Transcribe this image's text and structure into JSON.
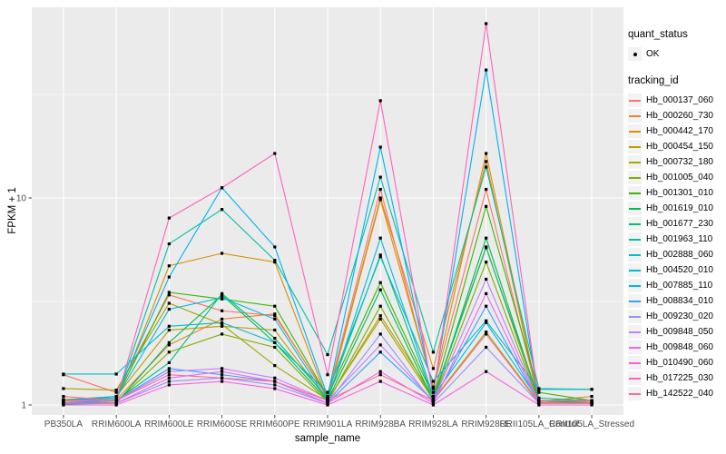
{
  "chart_data": {
    "type": "line",
    "title": "",
    "xlabel": "sample_name",
    "ylabel": "FPKM + 1",
    "y_scale": "log10",
    "y_ticks": [
      1,
      10
    ],
    "ylim": [
      0.9,
      83
    ],
    "grid": {
      "major": true,
      "minor_y": [
        3.162,
        31.62
      ]
    },
    "legend_position": "right",
    "categories": [
      "PB350LA",
      "RRIM600LA",
      "RRIM600LE",
      "RRIM600SE",
      "RRIM600PE",
      "RRIM901LA",
      "RRIM928BA",
      "RRIM928LA",
      "RRIM928LE",
      "RRII105LA_Control",
      "RRII105LA_Stressed"
    ],
    "series": [
      {
        "name": "Hb_000137_060",
        "color": "#F8766D",
        "values": [
          1.4,
          1.15,
          3.4,
          2.85,
          2.7,
          1.1,
          11.0,
          1.2,
          11.0,
          1.05,
          1.03
        ]
      },
      {
        "name": "Hb_000260_730",
        "color": "#EA8331",
        "values": [
          1.05,
          1.06,
          1.95,
          2.6,
          2.75,
          1.08,
          10.0,
          1.5,
          15.0,
          1.04,
          1.1
        ]
      },
      {
        "name": "Hb_000442_170",
        "color": "#D89000",
        "values": [
          1.03,
          1.05,
          4.7,
          5.4,
          4.9,
          1.06,
          9.8,
          1.22,
          16.4,
          1.05,
          1.03
        ]
      },
      {
        "name": "Hb_000454_150",
        "color": "#C09B00",
        "values": [
          1.06,
          1.1,
          2.3,
          2.4,
          2.3,
          1.05,
          2.7,
          1.1,
          5.8,
          1.03,
          1.02
        ]
      },
      {
        "name": "Hb_000732_180",
        "color": "#A3A500",
        "values": [
          1.2,
          1.18,
          3.1,
          2.45,
          1.55,
          1.06,
          2.6,
          1.06,
          2.25,
          1.03,
          1.02
        ]
      },
      {
        "name": "Hb_001005_040",
        "color": "#7CAE00",
        "values": [
          1.02,
          1.03,
          1.8,
          2.2,
          1.9,
          1.03,
          3.0,
          1.05,
          4.9,
          1.02,
          1.02
        ]
      },
      {
        "name": "Hb_001301_010",
        "color": "#39B600",
        "values": [
          1.06,
          1.08,
          3.5,
          3.25,
          3.0,
          1.1,
          3.9,
          1.1,
          9.1,
          1.15,
          1.05
        ]
      },
      {
        "name": "Hb_001619_010",
        "color": "#00BB4E",
        "values": [
          1.01,
          1.02,
          2.0,
          3.4,
          2.0,
          1.05,
          3.6,
          1.05,
          6.4,
          1.05,
          1.02
        ]
      },
      {
        "name": "Hb_001677_230",
        "color": "#00BF7D",
        "values": [
          1.02,
          1.05,
          1.6,
          3.45,
          2.1,
          1.08,
          5.3,
          1.08,
          5.75,
          1.08,
          1.05
        ]
      },
      {
        "name": "Hb_001963_110",
        "color": "#00C1A3",
        "values": [
          1.05,
          1.06,
          6.0,
          8.8,
          5.0,
          1.75,
          12.6,
          1.8,
          14.1,
          1.2,
          1.19
        ]
      },
      {
        "name": "Hb_002888_060",
        "color": "#00BFC4",
        "values": [
          1.41,
          1.41,
          2.4,
          2.5,
          2.0,
          1.15,
          5.2,
          1.3,
          2.55,
          1.19,
          1.19
        ]
      },
      {
        "name": "Hb_004520_010",
        "color": "#00BAE0",
        "values": [
          1.05,
          1.08,
          2.9,
          3.3,
          2.6,
          1.05,
          6.4,
          1.1,
          2.5,
          1.05,
          1.05
        ]
      },
      {
        "name": "Hb_007885_110",
        "color": "#00B0F6",
        "values": [
          1.05,
          1.1,
          4.15,
          11.2,
          5.8,
          1.1,
          17.6,
          1.15,
          41.5,
          1.05,
          1.05
        ]
      },
      {
        "name": "Hb_008834_010",
        "color": "#35A2FF",
        "values": [
          1.02,
          1.05,
          1.5,
          1.4,
          1.3,
          1.02,
          1.8,
          1.05,
          3.0,
          1.02,
          1.02
        ]
      },
      {
        "name": "Hb_009230_020",
        "color": "#9590FF",
        "values": [
          1.02,
          1.02,
          1.3,
          1.35,
          1.25,
          1.02,
          2.2,
          1.02,
          1.9,
          1.02,
          1.02
        ]
      },
      {
        "name": "Hb_009848_050",
        "color": "#C77CFF",
        "values": [
          1.05,
          1.05,
          1.45,
          1.5,
          1.35,
          1.05,
          1.95,
          1.05,
          4.05,
          1.02,
          1.02
        ]
      },
      {
        "name": "Hb_009848_060",
        "color": "#E76BF3",
        "values": [
          1.02,
          1.02,
          1.35,
          1.45,
          1.3,
          1.02,
          1.45,
          1.02,
          3.45,
          1.02,
          1.02
        ]
      },
      {
        "name": "Hb_010490_060",
        "color": "#FA62DB",
        "values": [
          1.0,
          1.0,
          1.25,
          1.3,
          1.2,
          1.0,
          1.3,
          1.0,
          1.45,
          1.0,
          1.0
        ]
      },
      {
        "name": "Hb_017225_030",
        "color": "#FF62BC",
        "values": [
          1.05,
          1.05,
          8.0,
          11.2,
          16.4,
          1.4,
          29.5,
          1.1,
          69.5,
          1.05,
          1.05
        ]
      },
      {
        "name": "Hb_142522_040",
        "color": "#FF6A98",
        "values": [
          1.1,
          1.05,
          1.4,
          1.35,
          1.3,
          1.05,
          1.4,
          1.05,
          2.2,
          1.02,
          1.02
        ]
      }
    ]
  },
  "legend": {
    "quant_status": {
      "title": "quant_status",
      "items": [
        {
          "label": "OK",
          "glyph": "black-point"
        }
      ]
    },
    "tracking_id": {
      "title": "tracking_id"
    }
  },
  "colors": {
    "panel_bg": "#EBEBEB",
    "grid": "#FFFFFF",
    "legend_key_bg": "#F2F2F2",
    "tick_text": "#4D4D4D",
    "tick_mark": "#333333",
    "point": "#000000"
  }
}
